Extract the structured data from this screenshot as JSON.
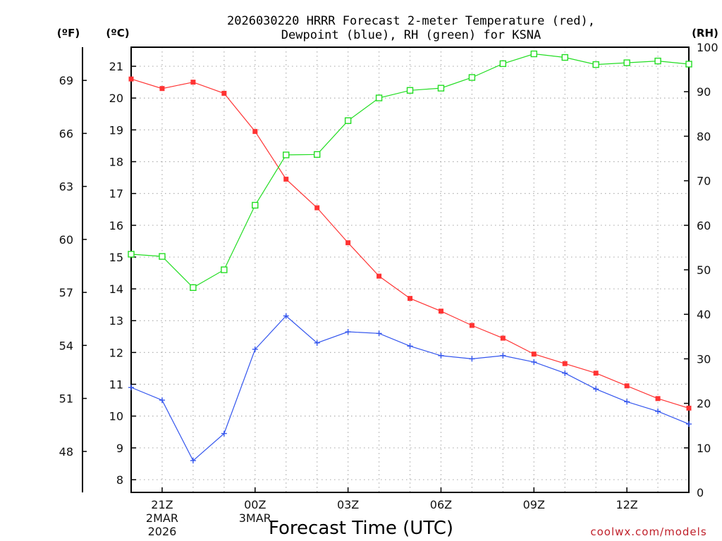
{
  "chart_data": {
    "type": "line",
    "title_line1": "2026030220 HRRR Forecast 2-meter Temperature (red),",
    "title_line2": "Dewpoint (blue), RH (green) for KSNA",
    "xlabel": "Forecast Time (UTC)",
    "credit": "coolwx.com/models",
    "unit_f": "(ºF)",
    "unit_c": "(ºC)",
    "unit_rh": "(RH)",
    "x_start_hour": 20,
    "x_count": 19,
    "x_ticks": [
      {
        "idx": 1,
        "lines": [
          "21Z",
          "2MAR",
          "2026"
        ]
      },
      {
        "idx": 4,
        "lines": [
          "00Z",
          "3MAR"
        ]
      },
      {
        "idx": 7,
        "lines": [
          "03Z"
        ]
      },
      {
        "idx": 10,
        "lines": [
          "06Z"
        ]
      },
      {
        "idx": 13,
        "lines": [
          "09Z"
        ]
      },
      {
        "idx": 16,
        "lines": [
          "12Z"
        ]
      }
    ],
    "y_left_c": {
      "min": 7.6,
      "max": 21.6,
      "ticks": [
        8,
        9,
        10,
        11,
        12,
        13,
        14,
        15,
        16,
        17,
        18,
        19,
        20,
        21
      ]
    },
    "y_left_f": {
      "ticks": [
        48,
        51,
        54,
        57,
        60,
        63,
        66,
        69
      ]
    },
    "y_right_rh": {
      "min": 0,
      "max": 100,
      "ticks": [
        0,
        10,
        20,
        30,
        40,
        50,
        60,
        70,
        80,
        90,
        100
      ]
    },
    "colors": {
      "temperature": "#ff3333",
      "dewpoint": "#3355ee",
      "rh": "#22dd22",
      "grid": "#b0b0b0"
    },
    "series": [
      {
        "name": "Temperature",
        "unit": "C",
        "marker": "filled-square",
        "values": [
          20.6,
          20.3,
          20.5,
          20.15,
          18.95,
          17.45,
          16.55,
          15.45,
          14.4,
          13.7,
          13.3,
          12.85,
          12.45,
          11.95,
          11.65,
          11.35,
          10.95,
          10.55,
          10.25
        ]
      },
      {
        "name": "Dewpoint",
        "unit": "C",
        "marker": "plus",
        "values": [
          10.9,
          10.5,
          8.6,
          9.45,
          12.1,
          13.15,
          12.3,
          12.65,
          12.6,
          12.2,
          11.9,
          11.8,
          11.9,
          11.7,
          11.35,
          10.85,
          10.45,
          10.15,
          9.75
        ]
      },
      {
        "name": "RH",
        "unit": "%",
        "marker": "open-square",
        "values": [
          53.5,
          53.0,
          46.0,
          50.0,
          64.5,
          75.8,
          75.9,
          83.5,
          88.6,
          90.3,
          90.8,
          93.2,
          96.3,
          98.5,
          97.7,
          96.1,
          96.5,
          96.9,
          96.2
        ]
      }
    ]
  }
}
